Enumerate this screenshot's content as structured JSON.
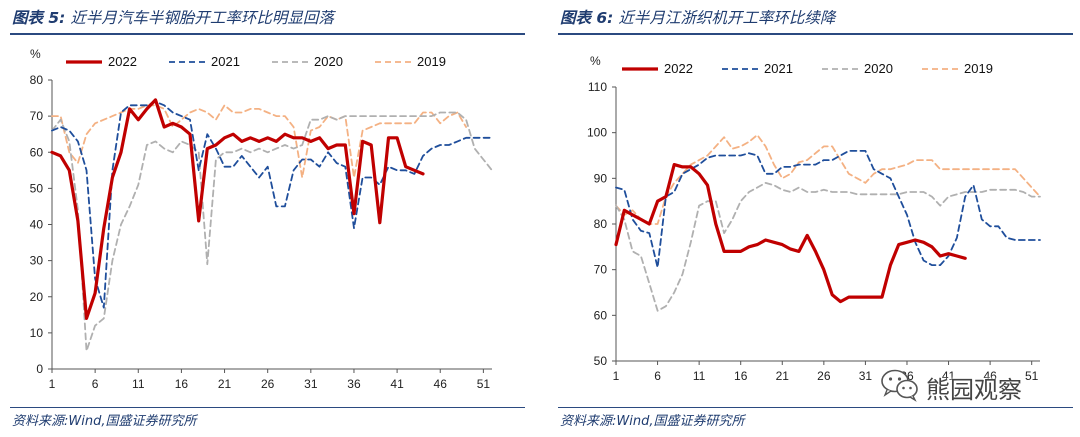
{
  "chart_data": [
    {
      "type": "line",
      "title_label": "图表 5:",
      "title": "近半月汽车半钢胎开工率环比明显回落",
      "source": "资料来源:Wind,国盛证券研究所",
      "ylabel": "%",
      "ylim": [
        0,
        80
      ],
      "yticks": [
        0,
        10,
        20,
        30,
        40,
        50,
        60,
        70,
        80
      ],
      "xlim": [
        1,
        52
      ],
      "xticks": [
        1,
        6,
        11,
        16,
        21,
        26,
        31,
        36,
        41,
        46,
        51
      ],
      "series": [
        {
          "name": "2022",
          "color": "#c00000",
          "dash": "",
          "width": 3.2,
          "x": [
            1,
            2,
            3,
            4,
            5,
            6,
            7,
            8,
            9,
            10,
            11,
            12,
            13,
            14,
            15,
            16,
            17,
            18,
            19,
            20,
            21,
            22,
            23,
            24,
            25,
            26,
            27,
            28,
            29,
            30,
            31,
            32,
            33,
            34,
            35,
            36,
            37,
            38,
            39,
            40,
            41,
            42,
            43,
            44
          ],
          "values": [
            60,
            59,
            55,
            41,
            14,
            21,
            39,
            53,
            60,
            72,
            69,
            72,
            74.5,
            67,
            68,
            67,
            65,
            41,
            61,
            62,
            64,
            65,
            63,
            64,
            63,
            64,
            63,
            65,
            64,
            64,
            63,
            64,
            61,
            62,
            62,
            43,
            63,
            62,
            40.5,
            64,
            64,
            56,
            55,
            54
          ]
        },
        {
          "name": "2021",
          "color": "#1f4e9b",
          "dash": "6,4",
          "width": 1.8,
          "x": [
            1,
            2,
            3,
            4,
            5,
            6,
            7,
            8,
            9,
            10,
            11,
            12,
            13,
            14,
            15,
            16,
            17,
            18,
            19,
            20,
            21,
            22,
            23,
            24,
            25,
            26,
            27,
            28,
            29,
            30,
            31,
            32,
            33,
            34,
            35,
            36,
            37,
            38,
            39,
            40,
            41,
            42,
            43,
            44,
            45,
            46,
            47,
            48,
            49,
            50,
            51,
            52
          ],
          "values": [
            66,
            67,
            66,
            63,
            55,
            25,
            17,
            55,
            71,
            73,
            73,
            73,
            74,
            73,
            71,
            70,
            69,
            55,
            65,
            61,
            56,
            56,
            59,
            56,
            53,
            56,
            45,
            45,
            55,
            58,
            58,
            56,
            60,
            57,
            56,
            39,
            53,
            53,
            51,
            56,
            55,
            55,
            54,
            59,
            61,
            62,
            62,
            63,
            64,
            64,
            64,
            64
          ]
        },
        {
          "name": "2020",
          "color": "#b0b0b0",
          "dash": "6,4",
          "width": 1.8,
          "x": [
            1,
            2,
            3,
            4,
            5,
            6,
            7,
            8,
            9,
            10,
            11,
            12,
            13,
            14,
            15,
            16,
            17,
            18,
            19,
            20,
            21,
            22,
            23,
            24,
            25,
            26,
            27,
            28,
            29,
            30,
            31,
            32,
            33,
            34,
            35,
            36,
            37,
            38,
            39,
            40,
            41,
            42,
            43,
            44,
            45,
            46,
            47,
            48,
            49,
            50,
            51,
            52
          ],
          "values": [
            66,
            69,
            63,
            44,
            5,
            12,
            14,
            30,
            40,
            45,
            51,
            62,
            63,
            61,
            60,
            63,
            62,
            60,
            29,
            58,
            60,
            60,
            61,
            60,
            61,
            60,
            61,
            62,
            61,
            62,
            69,
            69,
            70,
            69,
            70,
            70,
            70,
            70,
            70,
            70,
            70,
            70,
            70,
            70,
            70,
            71,
            71,
            71,
            69,
            61,
            58,
            55
          ]
        },
        {
          "name": "2019",
          "color": "#f4b183",
          "dash": "6,4",
          "width": 1.8,
          "x": [
            1,
            2,
            3,
            4,
            5,
            6,
            7,
            8,
            9,
            10,
            11,
            12,
            13,
            14,
            15,
            16,
            17,
            18,
            19,
            20,
            21,
            22,
            23,
            24,
            25,
            26,
            27,
            28,
            29,
            30,
            31,
            32,
            33,
            34,
            35,
            36,
            37,
            38,
            39,
            40,
            41,
            42,
            43,
            44,
            45,
            46,
            47,
            48,
            49
          ],
          "values": [
            70,
            70,
            60,
            57,
            65,
            68,
            69,
            70,
            71,
            72,
            72,
            73,
            73,
            72,
            67,
            69,
            71,
            72,
            71,
            69,
            73,
            71,
            71,
            72,
            72,
            71,
            70,
            70,
            67,
            53,
            66,
            67,
            70,
            69,
            70,
            53,
            66,
            67,
            68,
            68,
            68,
            68,
            68,
            71,
            71,
            68,
            70,
            71,
            67
          ]
        }
      ]
    },
    {
      "type": "line",
      "title_label": "图表 6:",
      "title": "近半月江浙织机开工率环比续降",
      "source": "资料来源:Wind,国盛证券研究所",
      "ylabel": "%",
      "ylim": [
        50,
        110
      ],
      "yticks": [
        50,
        60,
        70,
        80,
        90,
        100,
        110
      ],
      "xlim": [
        1,
        52
      ],
      "xticks": [
        1,
        6,
        11,
        16,
        21,
        26,
        31,
        36,
        41,
        46,
        51
      ],
      "series": [
        {
          "name": "2022",
          "color": "#c00000",
          "dash": "",
          "width": 3.2,
          "x": [
            1,
            2,
            3,
            4,
            5,
            6,
            7,
            8,
            9,
            10,
            11,
            12,
            13,
            14,
            15,
            16,
            17,
            18,
            19,
            20,
            21,
            22,
            23,
            24,
            25,
            26,
            27,
            28,
            29,
            30,
            31,
            32,
            33,
            34,
            35,
            36,
            37,
            38,
            39,
            40,
            41,
            42,
            43
          ],
          "values": [
            75.5,
            83,
            82,
            81,
            80,
            85,
            86,
            93,
            92.5,
            92.5,
            91,
            88.5,
            80,
            74,
            74,
            74,
            75,
            75.5,
            76.5,
            76,
            75.5,
            74.5,
            74,
            77.5,
            74,
            70,
            64.5,
            63,
            64,
            64,
            64,
            64,
            64,
            71,
            75.5,
            76,
            76.5,
            76,
            75,
            73,
            73.5,
            73,
            72.5
          ]
        },
        {
          "name": "2021",
          "color": "#1f4e9b",
          "dash": "6,4",
          "width": 1.8,
          "x": [
            1,
            2,
            3,
            4,
            5,
            6,
            7,
            8,
            9,
            10,
            11,
            12,
            13,
            14,
            15,
            16,
            17,
            18,
            19,
            20,
            21,
            22,
            23,
            24,
            25,
            26,
            27,
            28,
            29,
            30,
            31,
            32,
            33,
            34,
            35,
            36,
            37,
            38,
            39,
            40,
            41,
            42,
            43,
            44,
            45,
            46,
            47,
            48,
            49,
            50,
            51,
            52
          ],
          "values": [
            88,
            87.5,
            81,
            78.5,
            78,
            70.5,
            86,
            87,
            91,
            92,
            93,
            94.5,
            95,
            95,
            95,
            95,
            95.5,
            95,
            91,
            91,
            92.5,
            92.5,
            93,
            93,
            93,
            94,
            94,
            95,
            96,
            96,
            96,
            92,
            91,
            90,
            86,
            82,
            76,
            72,
            71,
            71,
            73,
            77,
            86,
            88.5,
            81,
            79.5,
            79.5,
            77,
            76.5,
            76.5,
            76.5,
            76.5
          ]
        },
        {
          "name": "2020",
          "color": "#b0b0b0",
          "dash": "6,4",
          "width": 1.8,
          "x": [
            1,
            2,
            3,
            4,
            5,
            6,
            7,
            8,
            9,
            10,
            11,
            12,
            13,
            14,
            15,
            16,
            17,
            18,
            19,
            20,
            21,
            22,
            23,
            24,
            25,
            26,
            27,
            28,
            29,
            30,
            31,
            32,
            33,
            34,
            35,
            36,
            37,
            38,
            39,
            40,
            41,
            42,
            43,
            44,
            45,
            46,
            47,
            48,
            49,
            50,
            51,
            52
          ],
          "values": [
            84,
            81,
            74,
            73,
            67,
            61,
            62,
            65,
            69,
            76,
            84,
            85,
            85,
            78,
            81,
            85,
            87,
            88,
            89,
            88.5,
            87.5,
            87,
            88,
            87,
            87,
            87.5,
            87,
            87,
            87,
            86.5,
            86.5,
            86.5,
            86.5,
            86.5,
            86.5,
            87,
            87,
            87,
            86,
            84,
            86,
            86.5,
            87,
            87,
            87,
            87.5,
            87.5,
            87.5,
            87.5,
            87,
            86,
            86
          ]
        },
        {
          "name": "2019",
          "color": "#f4b183",
          "dash": "6,4",
          "width": 1.8,
          "x": [
            1,
            2,
            3,
            4,
            5,
            6,
            7,
            8,
            9,
            10,
            11,
            12,
            13,
            14,
            15,
            16,
            17,
            18,
            19,
            20,
            21,
            22,
            23,
            24,
            25,
            26,
            27,
            28,
            29,
            30,
            31,
            32,
            33,
            34,
            35,
            36,
            37,
            38,
            39,
            40,
            41,
            42,
            43,
            44,
            45,
            46,
            47,
            48,
            49,
            50,
            51,
            52
          ],
          "values": [
            84,
            82,
            83,
            81,
            80,
            80,
            86,
            89,
            91,
            93,
            94,
            95,
            97,
            99,
            96.5,
            97,
            98,
            99.5,
            97,
            93,
            90,
            91,
            93.5,
            94,
            95.5,
            97,
            97,
            94,
            91,
            90,
            89,
            91,
            92,
            92,
            92.5,
            93,
            94,
            94,
            94,
            92,
            92,
            92,
            92,
            92,
            92,
            92,
            92,
            92,
            92,
            90,
            88,
            86
          ]
        }
      ]
    }
  ],
  "watermark": {
    "text": "熊园观察",
    "icon": "wechat-icon"
  }
}
